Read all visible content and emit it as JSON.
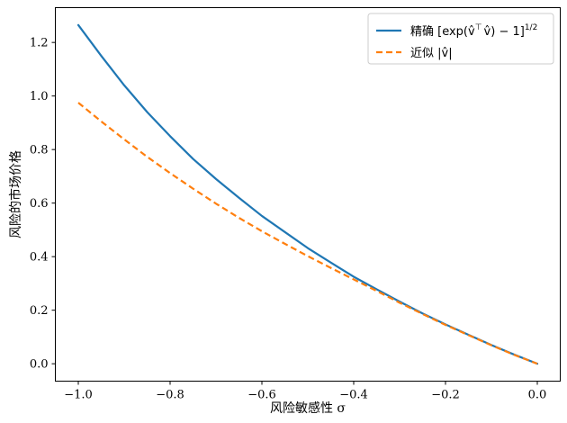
{
  "chart_data": {
    "type": "line",
    "xlabel": "风险敏感性 σ",
    "ylabel": "风险的市场价格",
    "xlim": [
      -1.05,
      0.05
    ],
    "ylim": [
      -0.065,
      1.33
    ],
    "xticks": [
      -1.0,
      -0.8,
      -0.6,
      -0.4,
      -0.2,
      0.0
    ],
    "xtick_labels": [
      "−1.0",
      "−0.8",
      "−0.6",
      "−0.4",
      "−0.2",
      "0.0"
    ],
    "yticks": [
      0.0,
      0.2,
      0.4,
      0.6,
      0.8,
      1.0,
      1.2
    ],
    "ytick_labels": [
      "0.0",
      "0.2",
      "0.4",
      "0.6",
      "0.8",
      "1.0",
      "1.2"
    ],
    "grid": false,
    "legend_position": "top-right",
    "x": [
      -1.0,
      -0.95,
      -0.9,
      -0.85,
      -0.8,
      -0.75,
      -0.7,
      -0.65,
      -0.6,
      -0.55,
      -0.5,
      -0.45,
      -0.4,
      -0.35,
      -0.3,
      -0.25,
      -0.2,
      -0.15,
      -0.1,
      -0.05,
      0.0
    ],
    "series": [
      {
        "name": "精确 [exp(v̂ᵀv̂) − 1]^(1/2)",
        "style": "solid",
        "color": "#1f77b4",
        "values": [
          1.265,
          1.15,
          1.04,
          0.94,
          0.85,
          0.765,
          0.69,
          0.62,
          0.552,
          0.492,
          0.432,
          0.378,
          0.325,
          0.278,
          0.232,
          0.188,
          0.147,
          0.108,
          0.07,
          0.034,
          0.0
        ]
      },
      {
        "name": "近似 |v̂|",
        "style": "dashed",
        "color": "#ff7f0e",
        "values": [
          0.975,
          0.905,
          0.838,
          0.773,
          0.712,
          0.654,
          0.598,
          0.545,
          0.495,
          0.448,
          0.402,
          0.358,
          0.315,
          0.272,
          0.228,
          0.186,
          0.145,
          0.107,
          0.069,
          0.033,
          0.0
        ]
      }
    ]
  },
  "legend": {
    "exact_prefix": "精确 [exp(",
    "v_hat": "v̂",
    "transpose": "⊤",
    "exact_mid": ") − 1]",
    "exponent": "1/2",
    "approx_prefix": "近似 |",
    "approx_suffix": "|"
  }
}
